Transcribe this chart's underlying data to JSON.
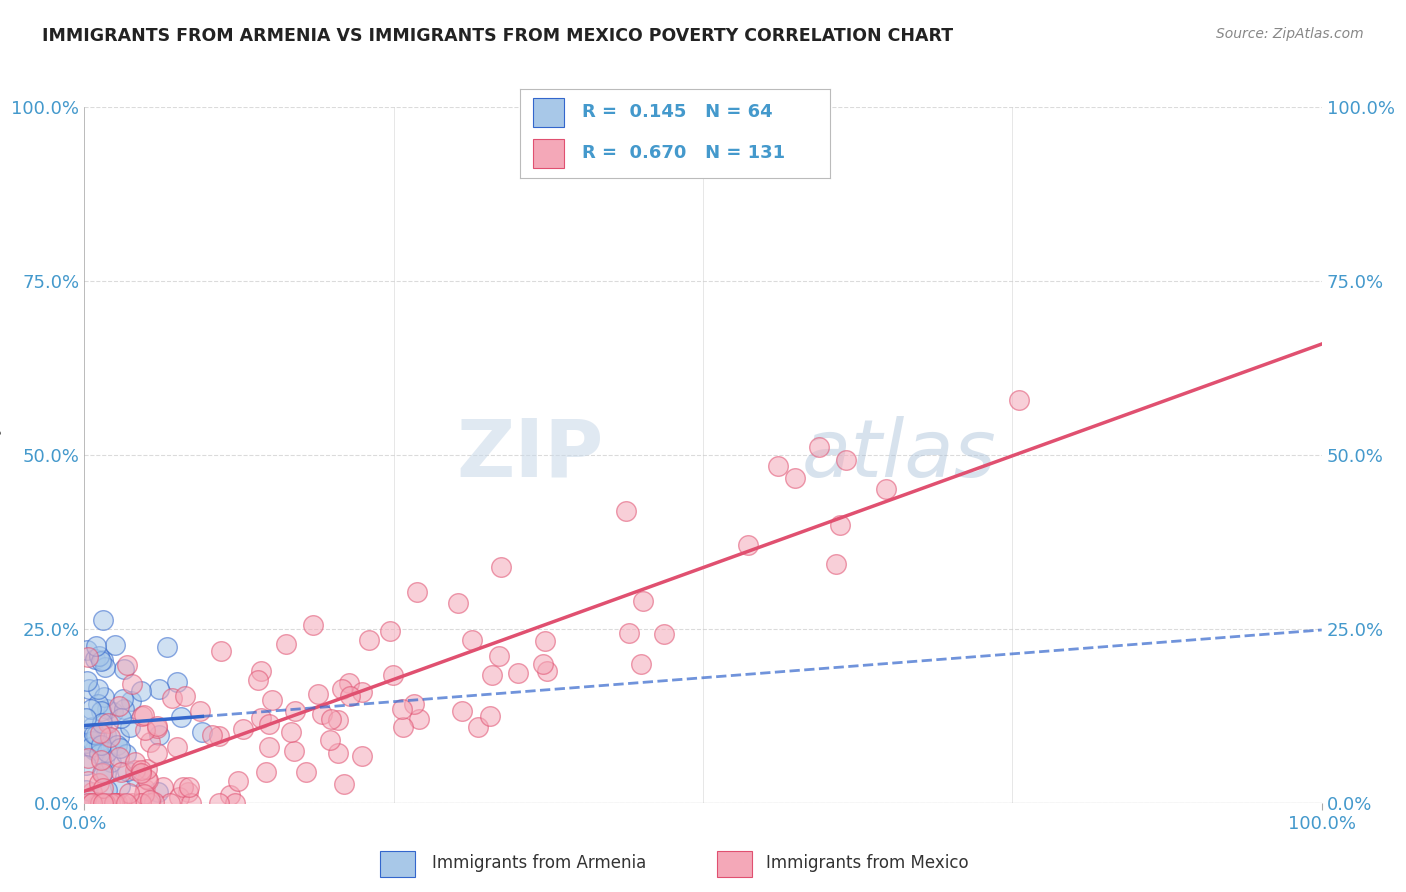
{
  "title": "IMMIGRANTS FROM ARMENIA VS IMMIGRANTS FROM MEXICO POVERTY CORRELATION CHART",
  "source": "Source: ZipAtlas.com",
  "ylabel": "Poverty",
  "xlim": [
    0.0,
    1.0
  ],
  "ylim": [
    0.0,
    1.0
  ],
  "x_tick_labels": [
    "0.0%",
    "100.0%"
  ],
  "y_tick_labels": [
    "0.0%",
    "25.0%",
    "50.0%",
    "75.0%",
    "100.0%"
  ],
  "y_tick_vals": [
    0.0,
    0.25,
    0.5,
    0.75,
    1.0
  ],
  "legend_R1": "0.145",
  "legend_N1": "64",
  "legend_R2": "0.670",
  "legend_N2": "131",
  "color_armenia": "#a8c8e8",
  "color_mexico": "#f4a8b8",
  "line_color_armenia": "#3366cc",
  "line_color_mexico": "#e05070",
  "watermark_zip": "ZIP",
  "watermark_atlas": "atlas",
  "background_color": "#ffffff",
  "grid_color": "#cccccc",
  "title_color": "#222222",
  "axis_label_color": "#666666",
  "tick_label_color": "#4499cc",
  "legend_text_color": "#4499cc"
}
